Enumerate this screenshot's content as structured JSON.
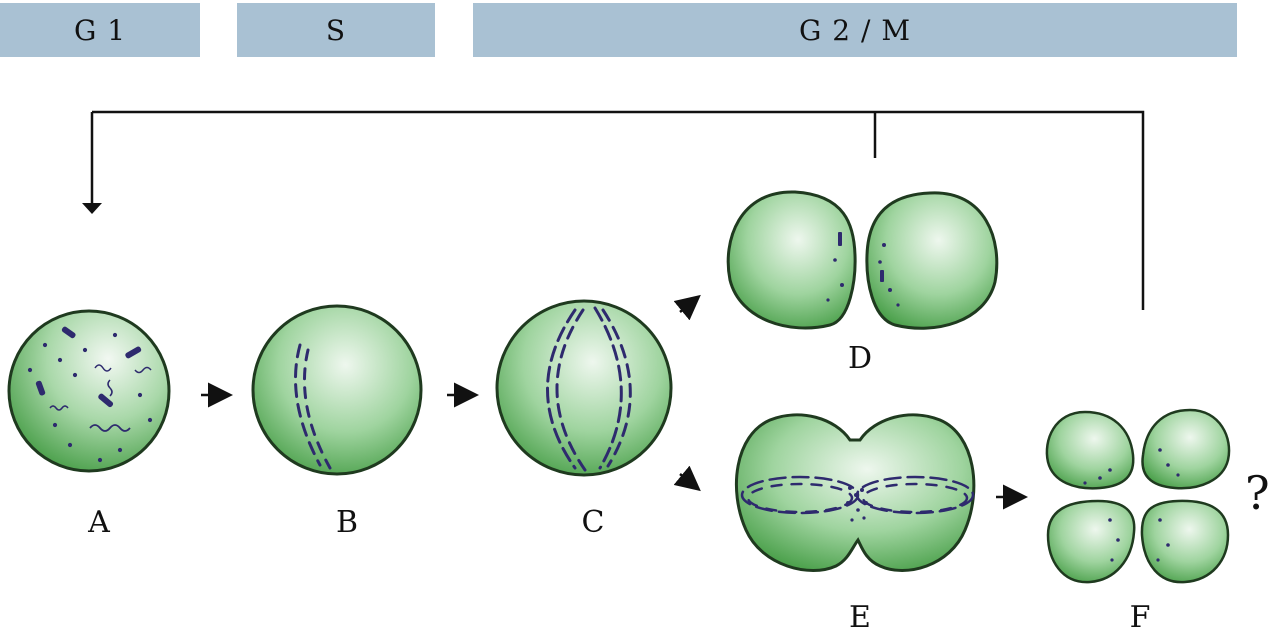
{
  "phases": {
    "g1": "G 1",
    "s": "S",
    "g2m": "G 2 / M"
  },
  "stages": {
    "a": "A",
    "b": "B",
    "c": "C",
    "d": "D",
    "e": "E",
    "f": "F"
  },
  "question_mark": "?",
  "colors": {
    "phase_bar": "#a9c1d3",
    "cell_green": "#3a9a3a",
    "cell_light": "#e6f3e6",
    "cell_outline": "#1f3a1f",
    "dna": "#2e2a6e"
  }
}
